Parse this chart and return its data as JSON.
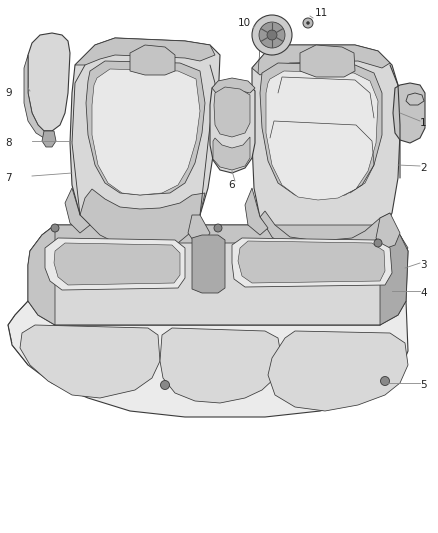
{
  "background_color": "#ffffff",
  "figure_width": 4.38,
  "figure_height": 5.33,
  "dpi": 100,
  "line_color": "#3a3a3a",
  "line_width": 0.8,
  "fill_light": "#d8d8d8",
  "fill_mid": "#c4c4c4",
  "fill_dark": "#aaaaaa",
  "fill_very_light": "#e8e8e8",
  "label_fontsize": 7.5,
  "label_color": "#222222"
}
